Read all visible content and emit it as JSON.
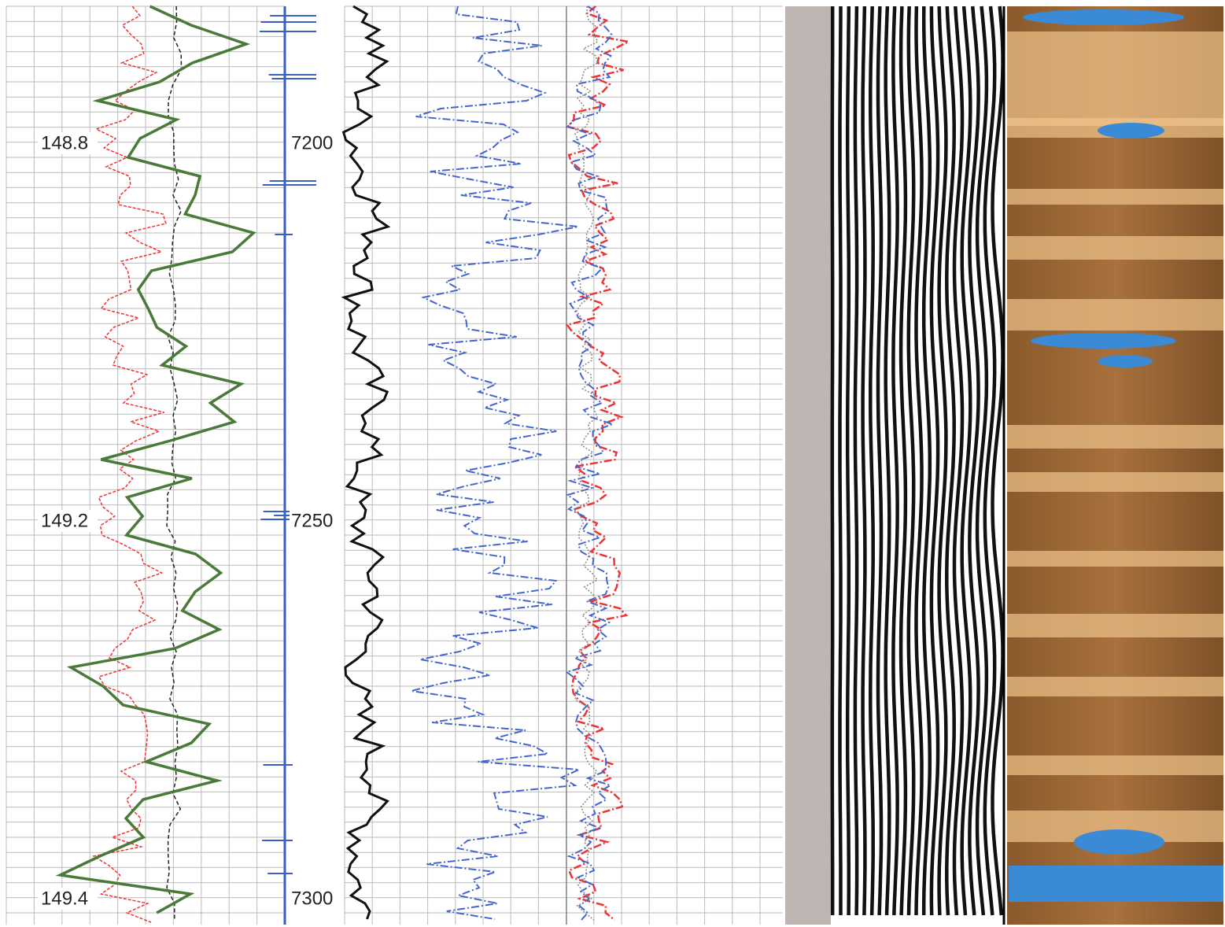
{
  "depth_track": {
    "labels": [
      "148.8",
      "149.2",
      "149.4"
    ]
  },
  "time_track": {
    "labels": [
      "7200",
      "7250",
      "7300"
    ]
  }
}
